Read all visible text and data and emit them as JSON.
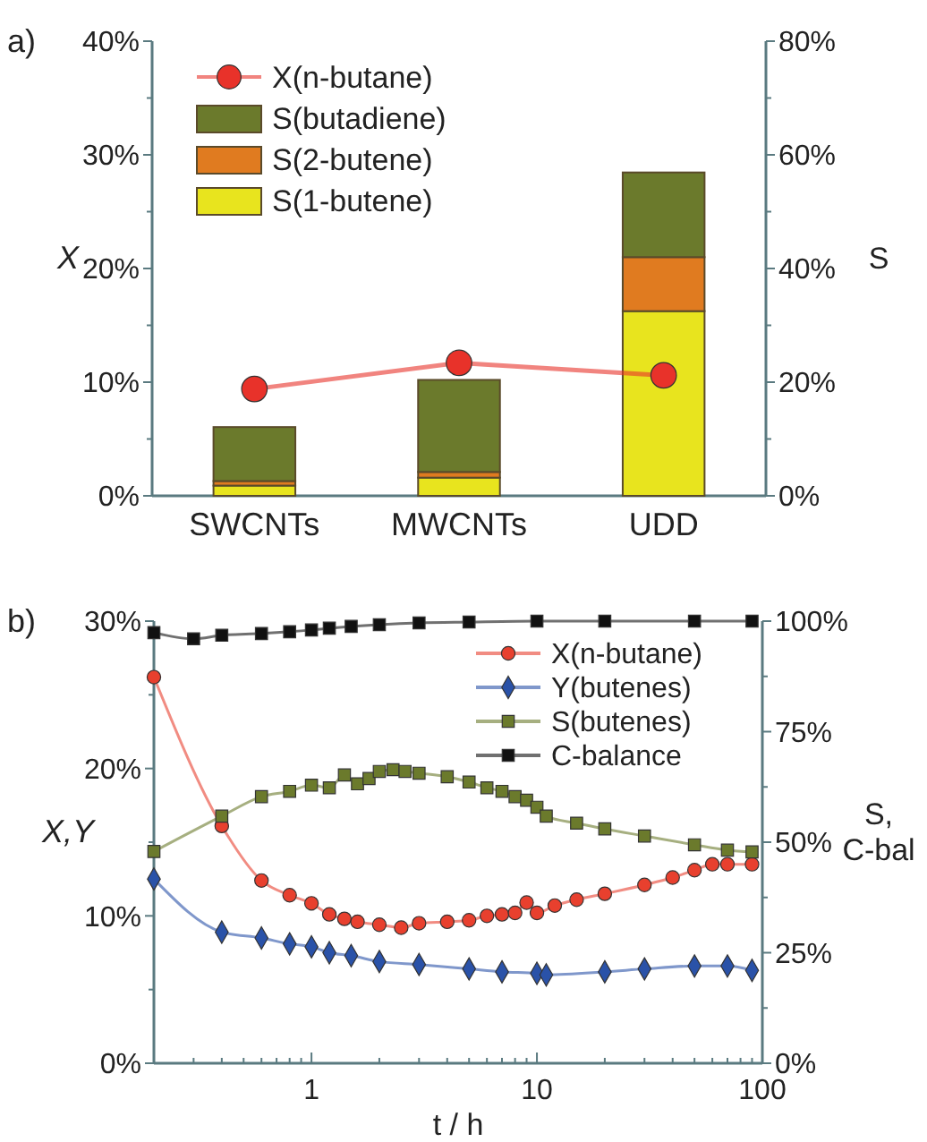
{
  "chart_data": [
    {
      "type": "bar",
      "title": "a)",
      "ylabel": "X",
      "y2label": "S",
      "categories": [
        "SWCNTs",
        "MWCNTs",
        "UDD"
      ],
      "stacked": true,
      "legend": "top left",
      "grid": false,
      "series": [
        {
          "name": "X(n-butane)",
          "type": "line",
          "marker": "circle",
          "color": "#e8322a",
          "values": [
            9.4,
            11.7,
            10.6
          ]
        },
        {
          "name": "S(1-butene)",
          "axis": "y2",
          "color": "#e8e41e",
          "values": [
            1.8,
            3.2,
            32.5
          ]
        },
        {
          "name": "S(2-butene)",
          "axis": "y2",
          "color": "#e07b20",
          "values": [
            0.8,
            1.0,
            9.5
          ]
        },
        {
          "name": "S(butadiene)",
          "axis": "y2",
          "color": "#6b7a2c",
          "values": [
            9.5,
            16.2,
            14.9
          ]
        }
      ],
      "ylim": [
        0,
        40
      ],
      "yticks": [
        {
          "value": 0,
          "label": "0%"
        },
        {
          "value": 10,
          "label": "10%"
        },
        {
          "value": 20,
          "label": "20%"
        },
        {
          "value": 30,
          "label": "30%"
        },
        {
          "value": 40,
          "label": "40%"
        },
        {
          "value": 5,
          "label": null
        },
        {
          "value": 15,
          "label": null
        },
        {
          "value": 25,
          "label": null
        },
        {
          "value": 35,
          "label": null
        }
      ],
      "y2lim": [
        0,
        80
      ],
      "y2ticks": [
        {
          "value": 0,
          "label": "0%"
        },
        {
          "value": 20,
          "label": "20%"
        },
        {
          "value": 40,
          "label": "40%"
        },
        {
          "value": 60,
          "label": "60%"
        },
        {
          "value": 80,
          "label": "80%"
        },
        {
          "value": 10,
          "label": null
        },
        {
          "value": 30,
          "label": null
        },
        {
          "value": 50,
          "label": null
        },
        {
          "value": 70,
          "label": null
        }
      ]
    },
    {
      "type": "line",
      "title": "b)",
      "xlabel": "t / h",
      "ylabel": "X,Y",
      "y2label": "S, C-bal",
      "log": "x",
      "legend": "top right",
      "grid": false,
      "series": [
        {
          "name": "X(n-butane)",
          "marker": "circle",
          "color": "#e8402e",
          "x": [
            0.2,
            0.4,
            0.6,
            0.8,
            1,
            1.2,
            1.4,
            1.6,
            2,
            2.5,
            3,
            4,
            5,
            6,
            7,
            8,
            9,
            10,
            12,
            15,
            20,
            30,
            40,
            50,
            60,
            70,
            90
          ],
          "values": [
            26.2,
            16.1,
            12.4,
            11.4,
            10.85,
            10.1,
            9.8,
            9.6,
            9.4,
            9.2,
            9.5,
            9.6,
            9.7,
            10.0,
            10.1,
            10.2,
            10.9,
            10.2,
            10.7,
            11.1,
            11.5,
            12.1,
            12.6,
            13.1,
            13.5,
            13.5,
            13.5
          ]
        },
        {
          "name": "Y(butenes)",
          "marker": "diamond",
          "color": "#2a52a8",
          "x": [
            0.2,
            0.4,
            0.6,
            0.8,
            1,
            1.2,
            1.5,
            2,
            3,
            5,
            7,
            10,
            11,
            20,
            30,
            50,
            70,
            90
          ],
          "values": [
            12.5,
            8.9,
            8.5,
            8.1,
            7.9,
            7.5,
            7.3,
            6.9,
            6.7,
            6.4,
            6.2,
            6.1,
            6.0,
            6.2,
            6.4,
            6.6,
            6.6,
            6.3
          ]
        },
        {
          "name": "S(butenes)",
          "axis": "y2",
          "marker": "square",
          "color": "#6b7a2c",
          "x": [
            0.2,
            0.4,
            0.6,
            0.8,
            1,
            1.2,
            1.4,
            1.6,
            1.8,
            2,
            2.3,
            2.6,
            3,
            4,
            5,
            6,
            7,
            8,
            9,
            10,
            11,
            15,
            20,
            30,
            50,
            70,
            90
          ],
          "values": [
            47.9,
            55.9,
            60.3,
            61.5,
            62.9,
            62.3,
            65.2,
            63.2,
            64.4,
            66.0,
            66.4,
            66.0,
            65.6,
            64.8,
            63.6,
            62.3,
            61.5,
            60.3,
            59.5,
            57.9,
            55.9,
            54.3,
            53.0,
            51.4,
            49.4,
            48.2,
            47.8
          ]
        },
        {
          "name": "C-balance",
          "axis": "y2",
          "marker": "square",
          "color": "#111111",
          "x": [
            0.2,
            0.3,
            0.4,
            0.6,
            0.8,
            1,
            1.2,
            1.5,
            2,
            3,
            5,
            10,
            20,
            50,
            90
          ],
          "values": [
            97.4,
            96.0,
            96.8,
            97.2,
            97.6,
            98.0,
            98.4,
            98.8,
            99.2,
            99.6,
            99.8,
            100,
            100,
            100,
            100
          ]
        }
      ],
      "xlim": [
        0.2,
        100
      ],
      "xticks": [
        1,
        10,
        100,
        {
          "value": 0.3,
          "label": null
        },
        {
          "value": 0.4,
          "label": null
        },
        {
          "value": 0.5,
          "label": null
        },
        {
          "value": 0.6,
          "label": null
        },
        {
          "value": 0.7,
          "label": null
        },
        {
          "value": 0.8,
          "label": null
        },
        {
          "value": 0.9,
          "label": null
        },
        {
          "value": 2,
          "label": null
        },
        {
          "value": 3,
          "label": null
        },
        {
          "value": 4,
          "label": null
        },
        {
          "value": 5,
          "label": null
        },
        {
          "value": 6,
          "label": null
        },
        {
          "value": 7,
          "label": null
        },
        {
          "value": 8,
          "label": null
        },
        {
          "value": 9,
          "label": null
        },
        {
          "value": 20,
          "label": null
        },
        {
          "value": 30,
          "label": null
        },
        {
          "value": 40,
          "label": null
        },
        {
          "value": 50,
          "label": null
        },
        {
          "value": 60,
          "label": null
        },
        {
          "value": 70,
          "label": null
        },
        {
          "value": 80,
          "label": null
        },
        {
          "value": 90,
          "label": null
        }
      ],
      "ylim": [
        0,
        30
      ],
      "yticks": [
        {
          "value": 0,
          "label": "0%"
        },
        {
          "value": 10,
          "label": "10%"
        },
        {
          "value": 20,
          "label": "20%"
        },
        {
          "value": 30,
          "label": "30%"
        },
        {
          "value": 5,
          "label": null
        },
        {
          "value": 15,
          "label": null
        },
        {
          "value": 25,
          "label": null
        }
      ],
      "y2lim": [
        0,
        100
      ],
      "y2ticks": [
        {
          "value": 0,
          "label": "0%"
        },
        {
          "value": 25,
          "label": "25%"
        },
        {
          "value": 50,
          "label": "50%"
        },
        {
          "value": 75,
          "label": "75%"
        },
        {
          "value": 100,
          "label": "100%"
        },
        {
          "value": 12.5,
          "label": null
        },
        {
          "value": 37.5,
          "label": null
        },
        {
          "value": 62.5,
          "label": null
        },
        {
          "value": 87.5,
          "label": null
        }
      ]
    }
  ]
}
